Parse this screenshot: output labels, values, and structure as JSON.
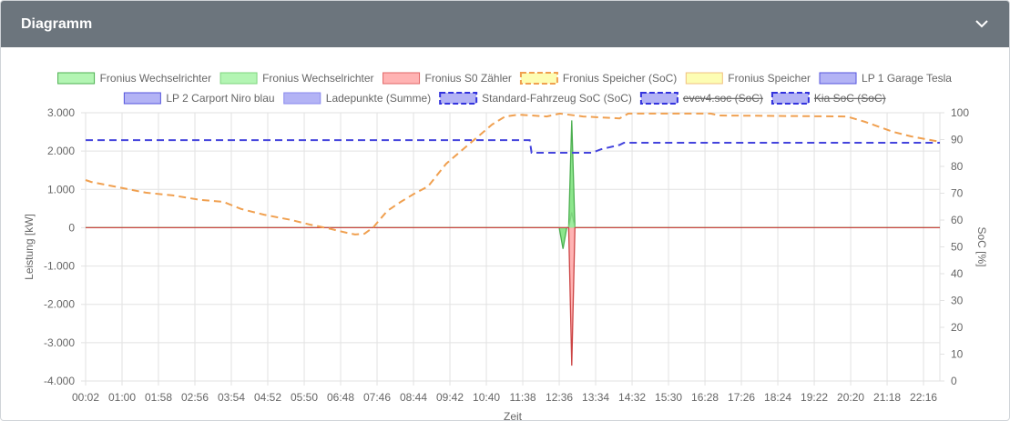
{
  "header": {
    "title": "Diagramm",
    "toggle_icon": "chevron-down-icon"
  },
  "legend": [
    {
      "label": "Fronius Wechselrichter",
      "fill": "#b3f5b3",
      "stroke": "#4caf50",
      "dashed": false,
      "hidden": false
    },
    {
      "label": "Fronius Wechselrichter",
      "fill": "#b3f5b3",
      "stroke": "#7ed47e",
      "dashed": false,
      "hidden": false
    },
    {
      "label": "Fronius S0 Zähler",
      "fill": "#ffb3b3",
      "stroke": "#e06666",
      "dashed": false,
      "hidden": false
    },
    {
      "label": "Fronius Speicher (SoC)",
      "fill": "#fdfdb3",
      "stroke": "#f0a050",
      "dashed": true,
      "hidden": false
    },
    {
      "label": "Fronius Speicher",
      "fill": "#fdfdb3",
      "stroke": "#f0c080",
      "dashed": false,
      "hidden": false
    },
    {
      "label": "LP 1 Garage Tesla",
      "fill": "#b3b3f5",
      "stroke": "#5555dd",
      "dashed": false,
      "hidden": false
    },
    {
      "label": "LP 2 Carport Niro blau",
      "fill": "#b3b3f5",
      "stroke": "#5555dd",
      "dashed": false,
      "hidden": false
    },
    {
      "label": "Ladepunkte (Summe)",
      "fill": "#b3b3f5",
      "stroke": "#8888ee",
      "dashed": false,
      "hidden": false
    },
    {
      "label": "Standard-Fahrzeug SoC (SoC)",
      "fill": "#b3b3f5",
      "stroke": "#3333dd",
      "dashed": true,
      "hidden": false
    },
    {
      "label": "evcv4.soc (SoC)",
      "fill": "#b3b3f5",
      "stroke": "#3333dd",
      "dashed": true,
      "hidden": true
    },
    {
      "label": "Kia SoC (SoC)",
      "fill": "#b3b3f5",
      "stroke": "#3333dd",
      "dashed": true,
      "hidden": true
    }
  ],
  "chart_data": {
    "type": "line",
    "xlabel": "Zeit",
    "ylabel": "Leistung [kW]",
    "y2label": "SoC [%]",
    "x_ticks": [
      "00:02",
      "01:00",
      "01:58",
      "02:56",
      "03:54",
      "04:52",
      "05:50",
      "06:48",
      "07:46",
      "08:44",
      "09:42",
      "10:40",
      "11:38",
      "12:36",
      "13:34",
      "14:32",
      "15:30",
      "16:28",
      "17:26",
      "18:24",
      "19:22",
      "20:20",
      "21:18",
      "22:16"
    ],
    "xlim": [
      "00:02",
      "22:42"
    ],
    "ylim": [
      -4000,
      3000
    ],
    "y_ticks": [
      "3.000",
      "2.000",
      "1.000",
      "0",
      "-1.000",
      "-2.000",
      "-3.000",
      "-4.000"
    ],
    "y2lim": [
      0,
      100
    ],
    "y2_ticks": [
      "100",
      "90",
      "80",
      "70",
      "60",
      "50",
      "40",
      "30",
      "20",
      "10",
      "0"
    ],
    "grid": true,
    "legend_position": "top",
    "series": [
      {
        "name": "Fronius Wechselrichter",
        "axis": "left",
        "color": "#4caf50",
        "fill": "#66dd66",
        "points": [
          [
            "00:02",
            0
          ],
          [
            "12:36",
            0
          ],
          [
            "12:42",
            -550
          ],
          [
            "12:48",
            0
          ],
          [
            "12:51",
            0
          ],
          [
            "12:56",
            2800
          ],
          [
            "13:01",
            0
          ],
          [
            "22:42",
            0
          ]
        ]
      },
      {
        "name": "Fronius Wechselrichter",
        "axis": "left",
        "color": "#7ed47e",
        "fill": "#a5eea5",
        "points": [
          [
            "00:02",
            0
          ],
          [
            "12:51",
            0
          ],
          [
            "12:56",
            400
          ],
          [
            "13:01",
            0
          ],
          [
            "22:42",
            0
          ]
        ]
      },
      {
        "name": "Fronius S0 Zähler",
        "axis": "left",
        "color": "#cc4444",
        "fill": "#ff9999",
        "points": [
          [
            "00:02",
            0
          ],
          [
            "12:51",
            0
          ],
          [
            "12:56",
            -3600
          ],
          [
            "13:01",
            0
          ],
          [
            "22:42",
            0
          ]
        ]
      },
      {
        "name": "Fronius Speicher (SoC)",
        "axis": "right",
        "color": "#f0a050",
        "dashed": true,
        "points": [
          [
            "00:02",
            74.9
          ],
          [
            "00:11",
            74.2
          ],
          [
            "01:01",
            71.9
          ],
          [
            "01:38",
            70.2
          ],
          [
            "02:21",
            69.2
          ],
          [
            "03:05",
            67.5
          ],
          [
            "03:41",
            66.8
          ],
          [
            "04:10",
            64.1
          ],
          [
            "04:46",
            62.0
          ],
          [
            "05:30",
            60.0
          ],
          [
            "05:59",
            58.3
          ],
          [
            "06:28",
            56.9
          ],
          [
            "06:57",
            55.3
          ],
          [
            "07:11",
            54.6
          ],
          [
            "07:26",
            54.9
          ],
          [
            "07:40",
            57.3
          ],
          [
            "08:02",
            63.4
          ],
          [
            "08:24",
            66.8
          ],
          [
            "08:45",
            69.8
          ],
          [
            "09:07",
            72.5
          ],
          [
            "09:36",
            81.0
          ],
          [
            "10:05",
            86.8
          ],
          [
            "10:27",
            91.2
          ],
          [
            "10:49",
            95.6
          ],
          [
            "11:10",
            98.6
          ],
          [
            "11:32",
            99.3
          ],
          [
            "12:16",
            98.6
          ],
          [
            "12:37",
            99.7
          ],
          [
            "13:14",
            98.6
          ],
          [
            "14:12",
            97.9
          ],
          [
            "14:26",
            99.7
          ],
          [
            "16:37",
            99.7
          ],
          [
            "16:51",
            99.0
          ],
          [
            "20:14",
            98.6
          ],
          [
            "20:43",
            96.6
          ],
          [
            "21:27",
            92.9
          ],
          [
            "21:56",
            91.2
          ],
          [
            "22:42",
            89.2
          ]
        ]
      },
      {
        "name": "Standard-Fahrzeug SoC (SoC)",
        "axis": "right",
        "color": "#4444dd",
        "dashed": true,
        "points": [
          [
            "00:02",
            89.8
          ],
          [
            "11:49",
            89.8
          ],
          [
            "11:52",
            85.1
          ],
          [
            "13:28",
            85.1
          ],
          [
            "13:43",
            86.4
          ],
          [
            "14:12",
            88.0
          ],
          [
            "14:19",
            88.8
          ],
          [
            "22:42",
            88.8
          ]
        ]
      }
    ]
  }
}
